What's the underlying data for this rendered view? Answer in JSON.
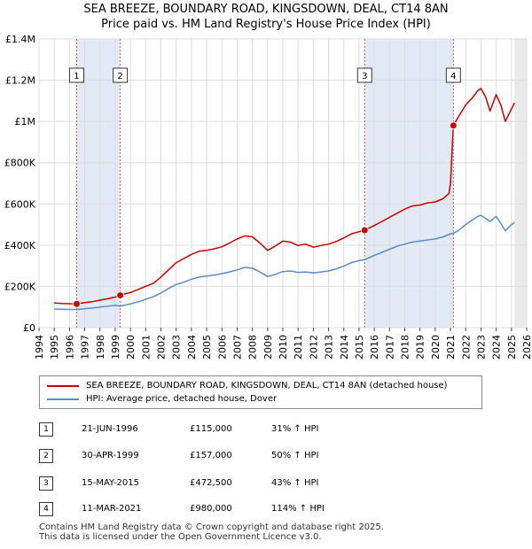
{
  "title": {
    "line1": "SEA BREEZE, BOUNDARY ROAD, KINGSDOWN, DEAL, CT14 8AN",
    "line2": "Price paid vs. HM Land Registry's House Price Index (HPI)"
  },
  "chart_data": {
    "type": "line",
    "title": "SEA BREEZE, BOUNDARY ROAD, KINGSDOWN, DEAL, CT14 8AN — Price paid vs. HM Land Registry's House Price Index (HPI)",
    "xlabel": "",
    "ylabel": "",
    "xlim": [
      1994,
      2026
    ],
    "ylim": [
      0,
      1400000
    ],
    "x_ticks": [
      "1994",
      "1995",
      "1996",
      "1997",
      "1998",
      "1999",
      "2000",
      "2001",
      "2002",
      "2003",
      "2004",
      "2005",
      "2006",
      "2007",
      "2008",
      "2009",
      "2010",
      "2011",
      "2012",
      "2013",
      "2014",
      "2015",
      "2016",
      "2017",
      "2018",
      "2019",
      "2020",
      "2021",
      "2022",
      "2023",
      "2024",
      "2025",
      "2026"
    ],
    "y_ticks": [
      {
        "value": 0,
        "label": "£0"
      },
      {
        "value": 200000,
        "label": "£200K"
      },
      {
        "value": 400000,
        "label": "£400K"
      },
      {
        "value": 600000,
        "label": "£600K"
      },
      {
        "value": 800000,
        "label": "£800K"
      },
      {
        "value": 1000000,
        "label": "£1M"
      },
      {
        "value": 1200000,
        "label": "£1.2M"
      },
      {
        "value": 1400000,
        "label": "£1.4M"
      }
    ],
    "grid": true,
    "series": [
      {
        "name": "SEA BREEZE, BOUNDARY ROAD, KINGSDOWN, DEAL, CT14 8AN (detached house)",
        "color": "#cc0000",
        "x": [
          1995.0,
          1995.5,
          1996.0,
          1996.47,
          1997.0,
          1997.5,
          1998.0,
          1998.5,
          1999.0,
          1999.33,
          2000.0,
          2000.5,
          2001.0,
          2001.5,
          2002.0,
          2002.5,
          2003.0,
          2003.5,
          2004.0,
          2004.5,
          2005.0,
          2005.5,
          2006.0,
          2006.5,
          2007.0,
          2007.5,
          2008.0,
          2008.5,
          2009.0,
          2009.5,
          2010.0,
          2010.5,
          2011.0,
          2011.5,
          2012.0,
          2012.5,
          2013.0,
          2013.5,
          2014.0,
          2014.5,
          2015.0,
          2015.37,
          2016.0,
          2016.5,
          2017.0,
          2017.5,
          2018.0,
          2018.5,
          2019.0,
          2019.5,
          2020.0,
          2020.5,
          2020.9,
          2021.0,
          2021.19,
          2021.5,
          2022.0,
          2022.5,
          2022.8,
          2023.0,
          2023.3,
          2023.6,
          2024.0,
          2024.3,
          2024.6,
          2025.0,
          2025.2
        ],
        "values": [
          120000,
          117000,
          116000,
          115000,
          121000,
          126000,
          133000,
          140000,
          148000,
          157000,
          170000,
          185000,
          200000,
          215000,
          245000,
          280000,
          315000,
          335000,
          355000,
          370000,
          375000,
          382000,
          392000,
          410000,
          430000,
          445000,
          440000,
          410000,
          375000,
          395000,
          420000,
          415000,
          398000,
          405000,
          390000,
          398000,
          405000,
          418000,
          435000,
          455000,
          465000,
          472500,
          495000,
          515000,
          535000,
          555000,
          575000,
          590000,
          595000,
          605000,
          610000,
          625000,
          650000,
          700000,
          980000,
          1020000,
          1080000,
          1120000,
          1150000,
          1160000,
          1120000,
          1050000,
          1130000,
          1080000,
          1000000,
          1060000,
          1090000
        ]
      },
      {
        "name": "HPI: Average price, detached house, Dover",
        "color": "#5a8cc8",
        "x": [
          1995.0,
          1995.5,
          1996.0,
          1996.47,
          1997.0,
          1997.5,
          1998.0,
          1998.5,
          1999.0,
          1999.33,
          2000.0,
          2000.5,
          2001.0,
          2001.5,
          2002.0,
          2002.5,
          2003.0,
          2003.5,
          2004.0,
          2004.5,
          2005.0,
          2005.5,
          2006.0,
          2006.5,
          2007.0,
          2007.5,
          2008.0,
          2008.5,
          2009.0,
          2009.5,
          2010.0,
          2010.5,
          2011.0,
          2011.5,
          2012.0,
          2012.5,
          2013.0,
          2013.5,
          2014.0,
          2014.5,
          2015.0,
          2015.37,
          2016.0,
          2016.5,
          2017.0,
          2017.5,
          2018.0,
          2018.5,
          2019.0,
          2019.5,
          2020.0,
          2020.5,
          2021.0,
          2021.19,
          2021.5,
          2022.0,
          2022.5,
          2022.8,
          2023.0,
          2023.3,
          2023.6,
          2024.0,
          2024.3,
          2024.6,
          2025.0,
          2025.2
        ],
        "values": [
          90000,
          89000,
          88000,
          88000,
          92000,
          95000,
          100000,
          104000,
          108000,
          105000,
          115000,
          125000,
          138000,
          150000,
          168000,
          190000,
          210000,
          220000,
          235000,
          245000,
          250000,
          255000,
          262000,
          270000,
          280000,
          292000,
          288000,
          270000,
          248000,
          258000,
          272000,
          275000,
          268000,
          270000,
          265000,
          270000,
          275000,
          285000,
          298000,
          315000,
          325000,
          330000,
          350000,
          365000,
          380000,
          395000,
          405000,
          415000,
          420000,
          425000,
          430000,
          440000,
          455000,
          458000,
          470000,
          500000,
          525000,
          540000,
          545000,
          530000,
          515000,
          540000,
          505000,
          470000,
          500000,
          510000
        ]
      }
    ],
    "annotations": [
      {
        "label": "1",
        "x": 1996.47,
        "value": 115000
      },
      {
        "label": "2",
        "x": 1999.33,
        "value": 157000
      },
      {
        "label": "3",
        "x": 2015.37,
        "value": 472500
      },
      {
        "label": "4",
        "x": 2021.19,
        "value": 980000
      }
    ],
    "shaded_ranges": [
      [
        1996.47,
        1999.33
      ],
      [
        2015.37,
        2021.19
      ],
      [
        2025.2,
        2026
      ]
    ]
  },
  "legend": {
    "property": "SEA BREEZE, BOUNDARY ROAD, KINGSDOWN, DEAL, CT14 8AN (detached house)",
    "hpi": "HPI: Average price, detached house, Dover",
    "property_color": "#cc0000",
    "hpi_color": "#5a8cc8"
  },
  "transactions": [
    {
      "num": "1",
      "date": "21-JUN-1996",
      "price": "£115,000",
      "hpi": "31% ↑ HPI"
    },
    {
      "num": "2",
      "date": "30-APR-1999",
      "price": "£157,000",
      "hpi": "50% ↑ HPI"
    },
    {
      "num": "3",
      "date": "15-MAY-2015",
      "price": "£472,500",
      "hpi": "43% ↑ HPI"
    },
    {
      "num": "4",
      "date": "11-MAR-2021",
      "price": "£980,000",
      "hpi": "114% ↑ HPI"
    }
  ],
  "footer": {
    "line1": "Contains HM Land Registry data © Crown copyright and database right 2025.",
    "line2": "This data is licensed under the Open Government Licence v3.0."
  }
}
